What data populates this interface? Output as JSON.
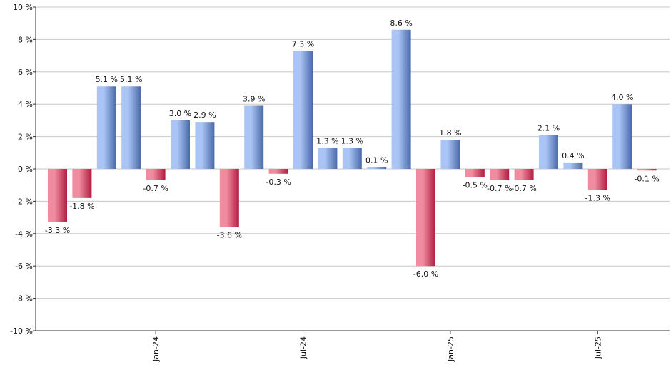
{
  "chart_data": {
    "type": "bar",
    "title": "",
    "xlabel": "",
    "ylabel": "",
    "ylim": [
      -10,
      10
    ],
    "y_ticks": [
      10,
      8,
      6,
      4,
      2,
      0,
      -2,
      -4,
      -6,
      -8,
      -10
    ],
    "y_tick_labels": [
      "10 %",
      "8 %",
      "6 %",
      "4 %",
      "2 %",
      "0 %",
      "-2 %",
      "-4 %",
      "-6 %",
      "-8 %",
      "-10 %"
    ],
    "grid": true,
    "values": [
      -3.3,
      -1.8,
      5.1,
      5.1,
      -0.7,
      3.0,
      2.9,
      -3.6,
      3.9,
      -0.3,
      7.3,
      1.3,
      1.3,
      0.1,
      8.6,
      -6.0,
      1.8,
      -0.5,
      -0.7,
      -0.7,
      2.1,
      0.4,
      -1.3,
      4.0,
      -0.1
    ],
    "value_labels": [
      "-3.3 %",
      "-1.8 %",
      "5.1 %",
      "5.1 %",
      "-0.7 %",
      "3.0 %",
      "2.9 %",
      "-3.6 %",
      "3.9 %",
      "-0.3 %",
      "7.3 %",
      "1.3 %",
      "1.3 %",
      "0.1 %",
      "8.6 %",
      "-6.0 %",
      "1.8 %",
      "-0.5 %",
      "-0.7 %",
      "-0.7 %",
      "2.1 %",
      "0.4 %",
      "-1.3 %",
      "4.0 %",
      "-0.1 %"
    ],
    "x_ticks": [
      {
        "label": "Jan-24",
        "index": 4
      },
      {
        "label": "Jul-24",
        "index": 10
      },
      {
        "label": "Jan-25",
        "index": 16
      },
      {
        "label": "Jul-25",
        "index": 22
      }
    ],
    "colors": {
      "positive_light": "#a9c4f5",
      "positive_dark": "#4a6aa8",
      "negative_light": "#f08ca0",
      "negative_dark": "#b01c40",
      "grid": "#c8c8c8",
      "axis": "#333333"
    }
  }
}
